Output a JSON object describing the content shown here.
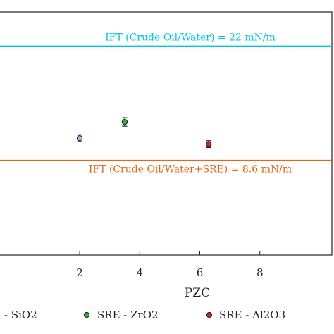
{
  "chart_data": {
    "type": "scatter",
    "xlabel": "PZC",
    "x_ticks": [
      "2",
      "4",
      "6",
      "8"
    ],
    "x_tick_values": [
      2,
      4,
      6,
      8
    ],
    "xlim": [
      -0.7,
      10.4
    ],
    "ylim": [
      -2.5,
      26
    ],
    "grid": false,
    "reference_lines": [
      {
        "label": "IFT (Crude Oil/Water) = 22 mN/m",
        "value": 22,
        "color": "#00c8d8"
      },
      {
        "label": "IFT (Crude Oil/Water+SRE) = 8.6 mN/m",
        "value": 8.6,
        "color": "#e06818"
      }
    ],
    "series": [
      {
        "name": "- SiO2",
        "color": "#d8a0e0",
        "points": [
          {
            "x": 2.0,
            "y": 11.2,
            "err": 0.4
          }
        ]
      },
      {
        "name": "SRE - ZrO2",
        "color": "#22bb22",
        "points": [
          {
            "x": 3.5,
            "y": 13.1,
            "err": 0.5
          }
        ]
      },
      {
        "name": "SRE - Al2O3",
        "color": "#e02020",
        "points": [
          {
            "x": 6.3,
            "y": 10.5,
            "err": 0.4
          }
        ]
      }
    ],
    "legend_position": "bottom"
  }
}
